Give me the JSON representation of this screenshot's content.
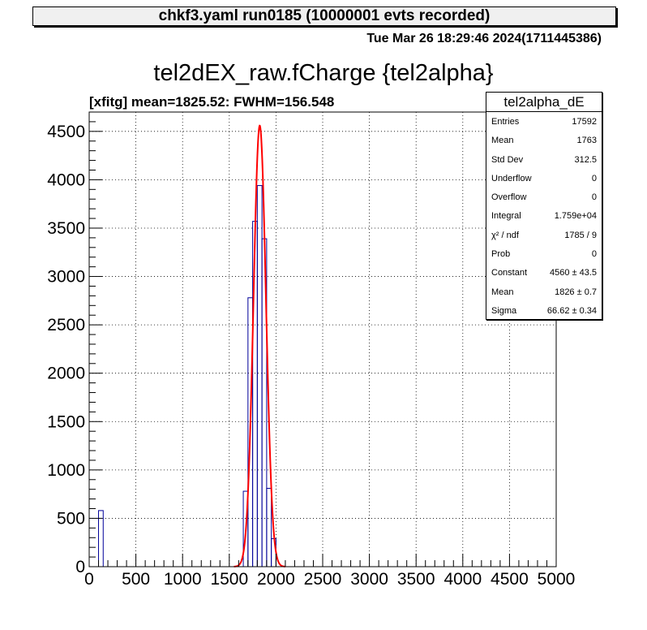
{
  "banner": {
    "text": "chkf3.yaml  run0185 (10000001 evts recorded)"
  },
  "timestamp": "Tue Mar 26 18:29:46 2024(1711445386)",
  "stats": {
    "title": "tel2alpha_dE",
    "rows": [
      {
        "label": "Entries",
        "value": "17592"
      },
      {
        "label": "Mean",
        "value": "1763"
      },
      {
        "label": "Std Dev",
        "value": "312.5"
      },
      {
        "label": "Underflow",
        "value": "0"
      },
      {
        "label": "Overflow",
        "value": "0"
      },
      {
        "label": "Integral",
        "value": "1.759e+04"
      },
      {
        "label": "χ² / ndf",
        "value": "1785 / 9"
      },
      {
        "label": "Prob",
        "value": "0"
      },
      {
        "label": "Constant",
        "value": "4560 ± 43.5"
      },
      {
        "label": "Mean",
        "value": "1826 ± 0.7"
      },
      {
        "label": "Sigma",
        "value": "66.62 ± 0.34"
      }
    ]
  },
  "chart_data": {
    "type": "bar",
    "title": "tel2dEX_raw.fCharge {tel2alpha}",
    "subtitle": "[xfitg] mean=1825.52: FWHM=156.548",
    "xlim": [
      0,
      5000
    ],
    "ylim": [
      0,
      4700
    ],
    "bin_width": 50,
    "x_ticks": [
      0,
      500,
      1000,
      1500,
      2000,
      2500,
      3000,
      3500,
      4000,
      4500,
      5000
    ],
    "y_ticks": [
      0,
      500,
      1000,
      1500,
      2000,
      2500,
      3000,
      3500,
      4000,
      4500
    ],
    "grid": true,
    "legend": "top-right",
    "series": [
      {
        "kind": "histogram",
        "color": "#000099",
        "bin_starts": [
          100,
          1650,
          1700,
          1750,
          1800,
          1850,
          1900,
          1950
        ],
        "counts": [
          580,
          780,
          2780,
          3570,
          3940,
          3390,
          810,
          290
        ]
      },
      {
        "kind": "gaussian-fit",
        "color": "#ff0000",
        "constant": 4560,
        "mean": 1826,
        "sigma": 66.62,
        "range": [
          1550,
          2100
        ]
      }
    ]
  }
}
